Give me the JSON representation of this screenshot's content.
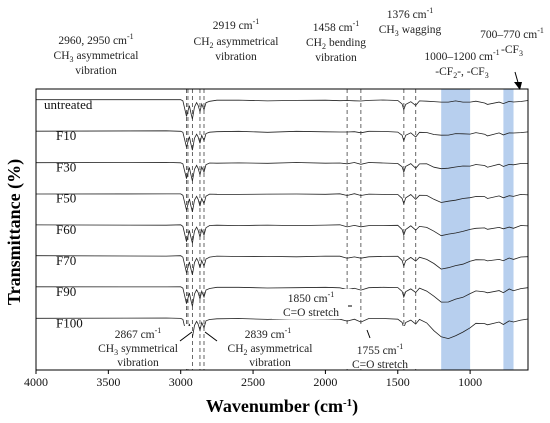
{
  "chart_data": {
    "type": "line",
    "title": "",
    "xlabel": "Wavenumber (cm",
    "xlabel_sup": "-1",
    "xlabel_close": ")",
    "ylabel": "Transmittance (%)",
    "x_reversed": true,
    "xlim": [
      4000,
      600
    ],
    "x_ticks": [
      4000,
      3500,
      3000,
      2500,
      2000,
      1500,
      1000
    ],
    "y_scale": "stacked offset traces, no numeric y ticks",
    "grid": false,
    "legend": "none (labels at left of each trace)",
    "series": [
      {
        "name": "untreated"
      },
      {
        "name": "F10"
      },
      {
        "name": "F30"
      },
      {
        "name": "F50"
      },
      {
        "name": "F60"
      },
      {
        "name": "F70"
      },
      {
        "name": "F90"
      },
      {
        "name": "F100"
      }
    ],
    "x": [
      4000,
      3100,
      3000,
      2985,
      2960,
      2950,
      2940,
      2930,
      2919,
      2905,
      2890,
      2880,
      2867,
      2855,
      2845,
      2839,
      2825,
      2800,
      2750,
      2600,
      2400,
      2200,
      2000,
      1900,
      1850,
      1800,
      1755,
      1700,
      1600,
      1500,
      1470,
      1458,
      1445,
      1410,
      1376,
      1350,
      1300,
      1250,
      1200,
      1150,
      1100,
      1050,
      1000,
      960,
      900,
      880,
      800,
      770,
      730,
      700,
      650,
      600
    ],
    "trace_depths": {
      "untreated": [
        0,
        0,
        0,
        0.06,
        0.75,
        0.5,
        0.25,
        0.55,
        0.85,
        0.3,
        0.12,
        0.25,
        0.55,
        0.2,
        0.35,
        0.45,
        0.12,
        0.04,
        0.02,
        0.02,
        0.03,
        0.02,
        0.02,
        0.02,
        0.04,
        0.02,
        0.05,
        0.02,
        0.02,
        0.03,
        0.2,
        0.45,
        0.2,
        0.06,
        0.25,
        0.06,
        0.04,
        0.08,
        0.1,
        0.08,
        0.06,
        0.08,
        0.1,
        0.07,
        0.12,
        0.2,
        0.08,
        0.15,
        0.08,
        0.1,
        0.05,
        0.04
      ],
      "F10": [
        0,
        0,
        0,
        0.06,
        0.75,
        0.5,
        0.25,
        0.55,
        0.85,
        0.3,
        0.12,
        0.25,
        0.55,
        0.2,
        0.35,
        0.45,
        0.12,
        0.04,
        0.02,
        0.02,
        0.03,
        0.02,
        0.02,
        0.02,
        0.05,
        0.02,
        0.06,
        0.02,
        0.02,
        0.03,
        0.2,
        0.45,
        0.2,
        0.06,
        0.25,
        0.06,
        0.06,
        0.14,
        0.2,
        0.16,
        0.12,
        0.12,
        0.12,
        0.08,
        0.12,
        0.2,
        0.08,
        0.15,
        0.08,
        0.1,
        0.05,
        0.04
      ],
      "F30": [
        0,
        0,
        0,
        0.06,
        0.75,
        0.5,
        0.25,
        0.55,
        0.85,
        0.3,
        0.12,
        0.25,
        0.55,
        0.2,
        0.35,
        0.45,
        0.12,
        0.04,
        0.02,
        0.02,
        0.03,
        0.02,
        0.02,
        0.02,
        0.06,
        0.02,
        0.07,
        0.02,
        0.02,
        0.03,
        0.2,
        0.45,
        0.2,
        0.06,
        0.25,
        0.06,
        0.08,
        0.2,
        0.3,
        0.26,
        0.2,
        0.18,
        0.15,
        0.1,
        0.14,
        0.2,
        0.1,
        0.18,
        0.08,
        0.12,
        0.05,
        0.04
      ],
      "F50": [
        0,
        0,
        0,
        0.06,
        0.75,
        0.5,
        0.25,
        0.55,
        0.85,
        0.3,
        0.12,
        0.25,
        0.55,
        0.2,
        0.35,
        0.45,
        0.12,
        0.04,
        0.02,
        0.02,
        0.03,
        0.02,
        0.02,
        0.02,
        0.07,
        0.02,
        0.08,
        0.02,
        0.02,
        0.03,
        0.2,
        0.45,
        0.2,
        0.06,
        0.25,
        0.06,
        0.1,
        0.25,
        0.4,
        0.36,
        0.28,
        0.24,
        0.18,
        0.12,
        0.15,
        0.22,
        0.12,
        0.2,
        0.08,
        0.12,
        0.05,
        0.04
      ],
      "F60": [
        0,
        0,
        0,
        0.06,
        0.75,
        0.5,
        0.25,
        0.55,
        0.85,
        0.3,
        0.12,
        0.25,
        0.55,
        0.2,
        0.35,
        0.45,
        0.12,
        0.04,
        0.02,
        0.02,
        0.03,
        0.02,
        0.02,
        0.02,
        0.08,
        0.03,
        0.1,
        0.02,
        0.02,
        0.03,
        0.2,
        0.45,
        0.2,
        0.06,
        0.25,
        0.06,
        0.12,
        0.3,
        0.48,
        0.44,
        0.36,
        0.3,
        0.22,
        0.14,
        0.16,
        0.22,
        0.12,
        0.2,
        0.1,
        0.14,
        0.05,
        0.04
      ],
      "F70": [
        0,
        0,
        0,
        0.06,
        0.75,
        0.5,
        0.25,
        0.55,
        0.85,
        0.3,
        0.12,
        0.25,
        0.55,
        0.2,
        0.35,
        0.45,
        0.12,
        0.04,
        0.02,
        0.02,
        0.03,
        0.02,
        0.02,
        0.02,
        0.1,
        0.03,
        0.12,
        0.02,
        0.02,
        0.03,
        0.2,
        0.45,
        0.2,
        0.06,
        0.25,
        0.06,
        0.14,
        0.36,
        0.58,
        0.54,
        0.44,
        0.36,
        0.26,
        0.16,
        0.18,
        0.24,
        0.14,
        0.22,
        0.1,
        0.14,
        0.05,
        0.04
      ],
      "F90": [
        0,
        0,
        0,
        0.06,
        0.75,
        0.5,
        0.25,
        0.55,
        0.85,
        0.3,
        0.12,
        0.25,
        0.55,
        0.2,
        0.35,
        0.45,
        0.12,
        0.04,
        0.02,
        0.02,
        0.03,
        0.02,
        0.02,
        0.02,
        0.12,
        0.03,
        0.14,
        0.02,
        0.02,
        0.03,
        0.2,
        0.45,
        0.2,
        0.06,
        0.25,
        0.06,
        0.16,
        0.42,
        0.68,
        0.66,
        0.56,
        0.44,
        0.3,
        0.18,
        0.2,
        0.26,
        0.14,
        0.24,
        0.1,
        0.16,
        0.05,
        0.04
      ],
      "F100": [
        0,
        0,
        0,
        0.06,
        0.75,
        0.5,
        0.25,
        0.55,
        0.85,
        0.3,
        0.12,
        0.25,
        0.55,
        0.2,
        0.35,
        0.45,
        0.12,
        0.04,
        0.02,
        0.02,
        0.03,
        0.02,
        0.02,
        0.02,
        0.14,
        0.03,
        0.16,
        0.02,
        0.02,
        0.03,
        0.2,
        0.45,
        0.2,
        0.06,
        0.25,
        0.06,
        0.2,
        0.55,
        0.85,
        0.9,
        0.8,
        0.62,
        0.42,
        0.24,
        0.22,
        0.28,
        0.16,
        0.26,
        0.12,
        0.18,
        0.06,
        0.04
      ]
    },
    "dashed_markers": [
      2960,
      2950,
      2919,
      2867,
      2839,
      1850,
      1755,
      1458,
      1376
    ],
    "shaded_regions": [
      [
        1200,
        1000
      ],
      [
        770,
        700
      ]
    ],
    "region_color": "#9fbfe8",
    "annotations": [
      {
        "id": "a1",
        "lines": [
          "2960, 2950 cm",
          "CH",
          "asymmetrical",
          "vibration"
        ]
      },
      {
        "id": "a2",
        "lines": [
          "2919 cm",
          "CH",
          "asymmetrical",
          "vibration"
        ]
      },
      {
        "id": "a3",
        "lines": [
          "1458 cm",
          "CH",
          "bending",
          "vibration"
        ]
      },
      {
        "id": "a4",
        "lines": [
          "1376 cm",
          "CH",
          "wagging"
        ]
      },
      {
        "id": "a5",
        "lines": [
          "1000–1200 cm",
          "-CF",
          "-, -CF"
        ]
      },
      {
        "id": "a6",
        "lines": [
          "700–770 cm",
          "-CF"
        ]
      },
      {
        "id": "a7",
        "lines": [
          "1850 cm",
          "C=O stretch"
        ]
      },
      {
        "id": "a8",
        "lines": [
          "2867 cm",
          "CH",
          "symmetrical",
          "vibration"
        ]
      },
      {
        "id": "a9",
        "lines": [
          "2839 cm",
          "CH",
          "asymmetrical",
          "vibration"
        ]
      },
      {
        "id": "a10",
        "lines": [
          "1755 cm",
          "C=O stretch"
        ]
      }
    ],
    "sub": {
      "three": "3",
      "two": "2",
      "minus1": "-1"
    }
  }
}
